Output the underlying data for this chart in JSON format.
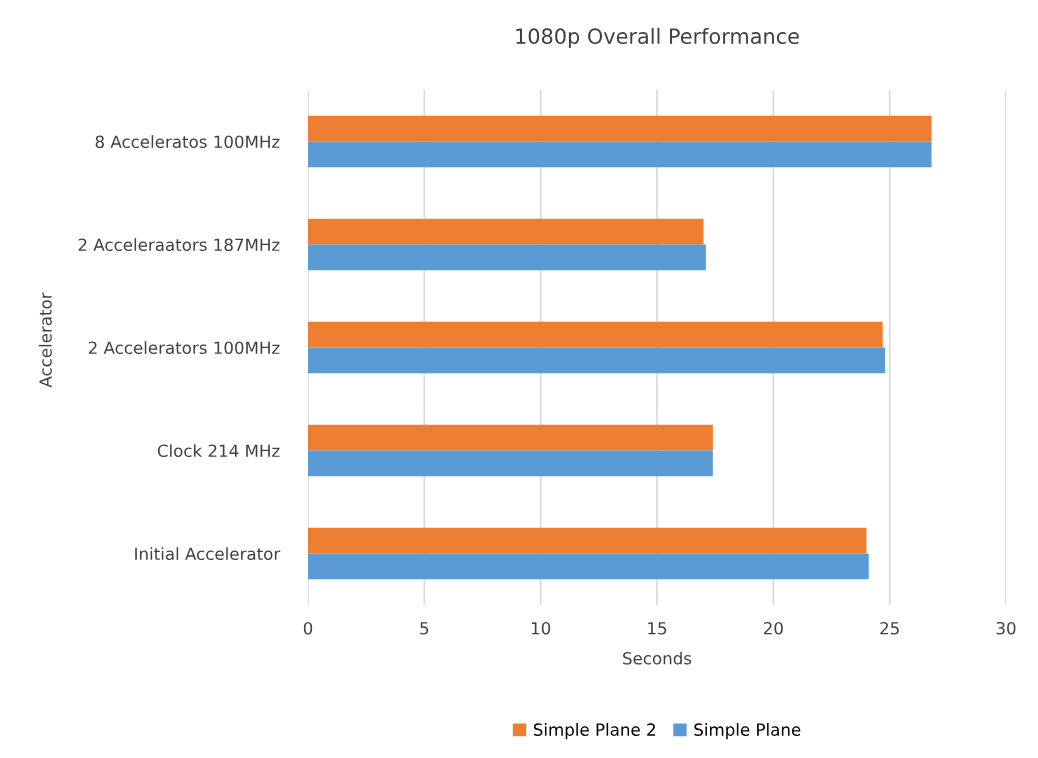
{
  "chart_data": {
    "type": "bar",
    "orientation": "horizontal",
    "title": "1080p Overall Performance",
    "xlabel": "Seconds",
    "ylabel": "Accelerator",
    "categories": [
      "8 Acceleratos 100MHz",
      "2 Acceleraators 187MHz",
      "2 Accelerators 100MHz",
      "Clock 214 MHz",
      "Initial Accelerator"
    ],
    "series": [
      {
        "name": "Simple Plane 2",
        "color": "#ed7d31",
        "values": [
          26.8,
          17.0,
          24.7,
          17.4,
          24.0
        ]
      },
      {
        "name": "Simple Plane",
        "color": "#5b9bd5",
        "values": [
          26.8,
          17.1,
          24.8,
          17.4,
          24.1
        ]
      }
    ],
    "xlim": [
      0,
      30
    ],
    "xticks": [
      0,
      5,
      10,
      15,
      20,
      25,
      30
    ],
    "grid": "x",
    "legend": "bottom"
  }
}
